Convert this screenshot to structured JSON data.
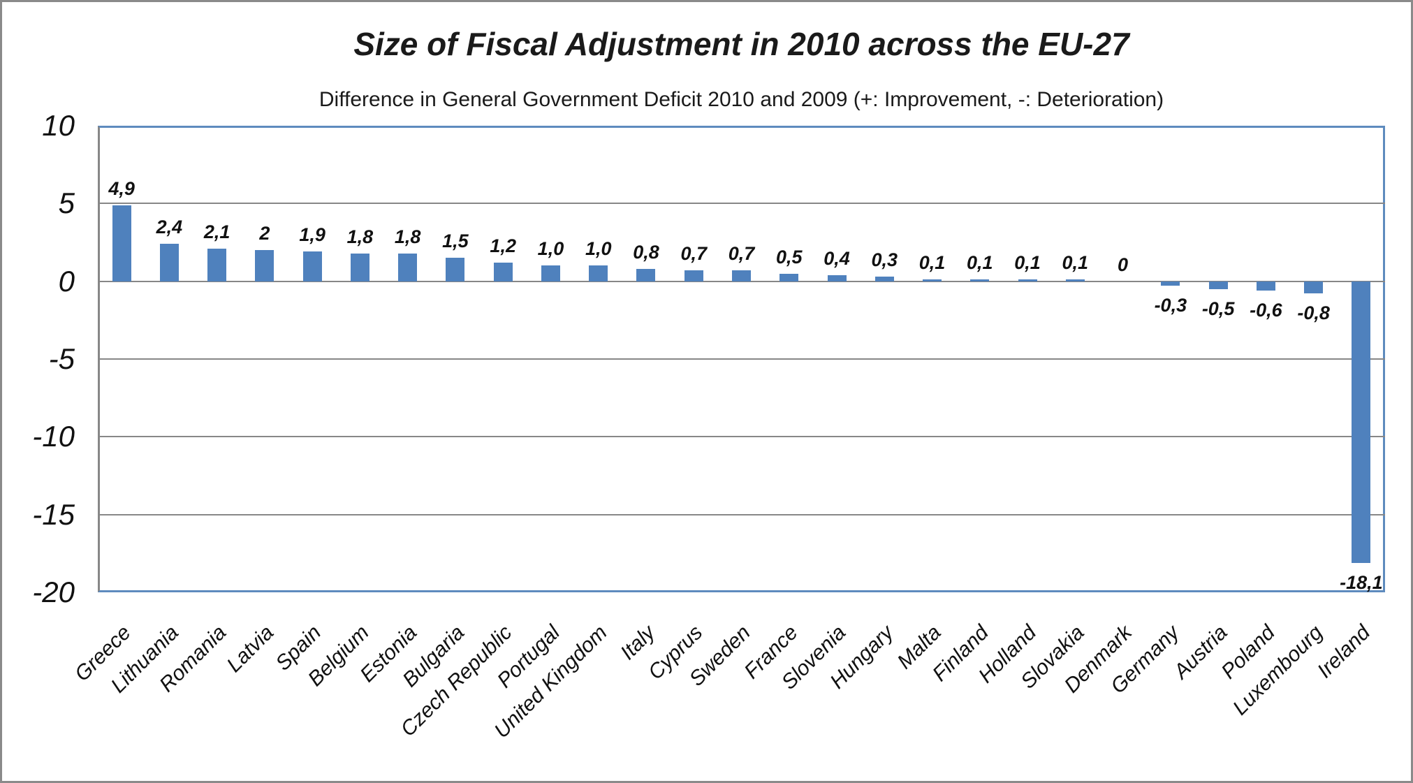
{
  "chart_data": {
    "type": "bar",
    "title": "Size of Fiscal Adjustment in 2010 across the EU-27",
    "subtitle": "Difference in General Government Deficit 2010 and 2009 (+: Improvement, -: Deterioration)",
    "categories": [
      "Greece",
      "Lithuania",
      "Romania",
      "Latvia",
      "Spain",
      "Belgium",
      "Estonia",
      "Bulgaria",
      "Czech Republic",
      "Portugal",
      "United Kingdom",
      "Italy",
      "Cyprus",
      "Sweden",
      "France",
      "Slovenia",
      "Hungary",
      "Malta",
      "Finland",
      "Holland",
      "Slovakia",
      "Denmark",
      "Germany",
      "Austria",
      "Poland",
      "Luxembourg",
      "Ireland"
    ],
    "values": [
      4.9,
      2.4,
      2.1,
      2,
      1.9,
      1.8,
      1.8,
      1.5,
      1.2,
      1.0,
      1.0,
      0.8,
      0.7,
      0.7,
      0.5,
      0.4,
      0.3,
      0.1,
      0.1,
      0.1,
      0.1,
      0,
      -0.3,
      -0.5,
      -0.6,
      -0.8,
      -18.1
    ],
    "value_labels": [
      "4,9",
      "2,4",
      "2,1",
      "2",
      "1,9",
      "1,8",
      "1,8",
      "1,5",
      "1,2",
      "1,0",
      "1,0",
      "0,8",
      "0,7",
      "0,7",
      "0,5",
      "0,4",
      "0,3",
      "0,1",
      "0,1",
      "0,1",
      "0,1",
      "0",
      "-0,3",
      "-0,5",
      "-0,6",
      "-0,8",
      "-18,1"
    ],
    "y_tick_labels": [
      "10",
      "5",
      "0",
      "-5",
      "-10",
      "-15",
      "-20"
    ],
    "y_tick_values": [
      10,
      5,
      0,
      -5,
      -10,
      -15,
      -20
    ],
    "ylim": [
      -20,
      10
    ],
    "xlabel": "",
    "ylabel": "",
    "grid": true,
    "legend": false,
    "bar_color": "#4F81BD",
    "plot_border_color": "#5E8BBE",
    "gridline_color": "#878787",
    "outer_border_color": "#8a8a8a",
    "text_color": "#111111"
  }
}
